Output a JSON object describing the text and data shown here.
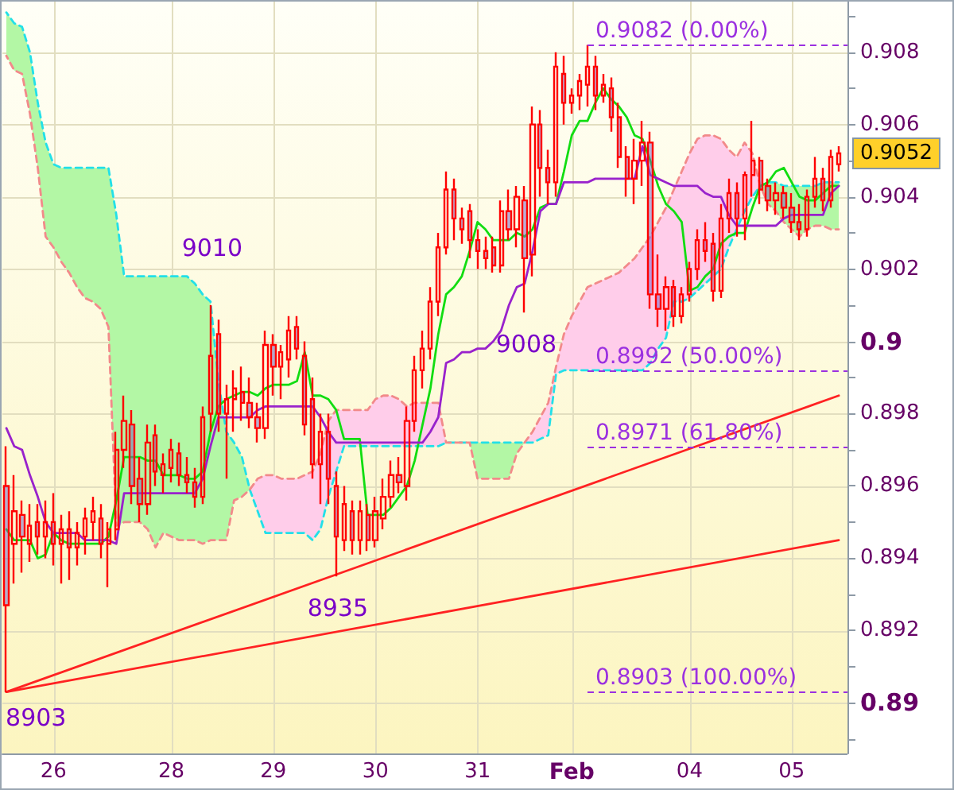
{
  "chart_data": {
    "type": "candlestick",
    "categories": [
      null,
      null,
      null,
      null,
      null,
      null,
      "26",
      null,
      null,
      null,
      null,
      null,
      null,
      null,
      null,
      null,
      null,
      null,
      null,
      null,
      null,
      "28",
      null,
      null,
      null,
      null,
      null,
      null,
      null,
      null,
      null,
      null,
      null,
      null,
      "29",
      null,
      null,
      null,
      null,
      null,
      null,
      null,
      null,
      null,
      null,
      null,
      null,
      "30",
      null,
      null,
      null,
      null,
      null,
      null,
      null,
      null,
      null,
      null,
      null,
      null,
      "31",
      null,
      null,
      null,
      null,
      null,
      null,
      null,
      null,
      null,
      null,
      null,
      "Feb",
      null,
      null,
      null,
      null,
      null,
      null,
      null,
      null,
      null,
      null,
      null,
      null,
      null,
      null,
      "04",
      null,
      null,
      null,
      null,
      null,
      null,
      null,
      null,
      null,
      null,
      null,
      null,
      "05",
      null,
      null,
      null,
      null,
      null,
      null
    ],
    "ylim": [
      0.8886,
      0.9094
    ],
    "yticks": [
      {
        "value": 0.889,
        "label": null
      },
      0.89,
      {
        "value": 0.891,
        "label": null
      },
      0.892,
      {
        "value": 0.893,
        "label": null
      },
      0.894,
      {
        "value": 0.895,
        "label": null
      },
      0.896,
      {
        "value": 0.897,
        "label": null
      },
      0.898,
      {
        "value": 0.899,
        "label": null
      },
      0.9,
      {
        "value": 0.901,
        "label": null
      },
      0.902,
      {
        "value": 0.903,
        "label": null
      },
      0.904,
      {
        "value": 0.905,
        "label": null
      },
      0.906,
      {
        "value": 0.907,
        "label": null
      },
      0.908,
      {
        "value": 0.909,
        "label": null
      }
    ],
    "grid": true,
    "series": [
      {
        "type": "area",
        "color": "#b3f7a5",
        "values": [
          null,
          null,
          null,
          null,
          null,
          null,
          null,
          null,
          null,
          null,
          null,
          null,
          null,
          null,
          null,
          null,
          null,
          null,
          null,
          null,
          null,
          null,
          null,
          null,
          null,
          null,
          null,
          null,
          null,
          null,
          null,
          null,
          null,
          null,
          null,
          null,
          null,
          null,
          null,
          null,
          null,
          null,
          null,
          null,
          null,
          null,
          null,
          null,
          null,
          null,
          null,
          null,
          null,
          null,
          null,
          null,
          null,
          null,
          null,
          null,
          null,
          null,
          null,
          null,
          null,
          null,
          null,
          null,
          null,
          null,
          null,
          null,
          null,
          null,
          null,
          null,
          null,
          null,
          null,
          null,
          null,
          null,
          null,
          null,
          null,
          null,
          null,
          null,
          null,
          null,
          null,
          null,
          null,
          null,
          null,
          null,
          null,
          null,
          null,
          null,
          null,
          null,
          null,
          null,
          null,
          null,
          null
        ],
        "lower": [
          0.9079,
          0.9075,
          0.9074,
          0.9063,
          0.9048,
          0.9029,
          0.9026,
          0.9022,
          0.9019,
          0.9015,
          0.9012,
          0.9011,
          0.9009,
          0.9004,
          0.8949,
          0.895,
          0.895,
          0.895,
          0.8948,
          0.8943,
          0.8947,
          0.8946,
          0.8945,
          0.8945,
          0.8945,
          0.8944,
          0.8945,
          0.8945,
          0.8945,
          0.8956,
          0.8957,
          0.8959,
          null,
          null,
          null,
          null,
          null,
          null,
          null,
          null,
          null,
          null,
          null,
          null,
          null,
          null,
          null,
          null,
          null,
          null,
          null,
          null,
          null,
          null,
          null,
          null,
          null,
          null,
          null,
          0.8972,
          0.8962,
          0.8962,
          0.8962,
          0.8962,
          0.8962,
          0.8969,
          0.8972,
          null,
          null,
          null,
          null,
          null,
          null,
          null,
          null,
          null,
          null,
          null,
          null,
          null,
          null,
          null,
          null,
          null,
          null,
          null,
          null,
          null,
          null,
          null,
          null,
          null,
          null,
          null,
          null,
          null,
          0.9043,
          0.9038,
          0.9036,
          0.9033,
          0.9031,
          0.9029,
          0.9031,
          0.9032,
          0.9032,
          0.9031,
          0.9031
        ],
        "upper": [
          0.9091,
          0.9088,
          0.9087,
          0.908,
          0.9066,
          0.9055,
          0.9049,
          0.9048,
          0.9048,
          0.9048,
          0.9048,
          0.9048,
          0.9048,
          0.9048,
          0.9035,
          0.9018,
          0.9018,
          0.9018,
          0.9018,
          0.9018,
          0.9018,
          0.9018,
          0.9018,
          0.9018,
          0.9016,
          0.9013,
          0.9011,
          0.8989,
          0.8975,
          0.8972,
          0.8968,
          0.8959,
          null,
          null,
          null,
          null,
          null,
          null,
          null,
          null,
          null,
          null,
          null,
          null,
          null,
          null,
          null,
          null,
          null,
          null,
          null,
          null,
          null,
          null,
          null,
          null,
          null,
          null,
          null,
          0.8972,
          0.8972,
          0.8972,
          0.8972,
          0.8972,
          0.8972,
          0.8972,
          0.8972,
          null,
          null,
          null,
          null,
          null,
          null,
          null,
          null,
          null,
          null,
          null,
          null,
          null,
          null,
          null,
          null,
          null,
          null,
          null,
          null,
          null,
          null,
          null,
          null,
          null,
          null,
          null,
          null,
          null,
          0.9043,
          0.9044,
          0.9044,
          0.9043,
          0.9043,
          0.9043,
          0.9043,
          0.9043,
          0.9044,
          0.9044,
          0.9044
        ]
      },
      {
        "type": "area",
        "color": "#ffcdea",
        "values": [
          null,
          null,
          null,
          null,
          null,
          null,
          null,
          null,
          null,
          null,
          null,
          null,
          null,
          null,
          null,
          null,
          null,
          null,
          null,
          null,
          null,
          null,
          null,
          null,
          null,
          null,
          null,
          null,
          null,
          null,
          null,
          null,
          null,
          null,
          null,
          null,
          null,
          null,
          null,
          null,
          null,
          null,
          null,
          null,
          null,
          null,
          null,
          null,
          null,
          null,
          null,
          null,
          null,
          null,
          null,
          null,
          null,
          null,
          null,
          null,
          null,
          null,
          null,
          null,
          null,
          null,
          null,
          null,
          null,
          null,
          null,
          null,
          null,
          null,
          null,
          null,
          null,
          null,
          null,
          null,
          null,
          null,
          null,
          null,
          null,
          null,
          null,
          null,
          null,
          null,
          null,
          null,
          null,
          null,
          null,
          null,
          null,
          null,
          null,
          null,
          null,
          null,
          null,
          null,
          null,
          null,
          null
        ],
        "lower": [
          null,
          null,
          null,
          null,
          null,
          null,
          null,
          null,
          null,
          null,
          null,
          null,
          null,
          null,
          null,
          null,
          null,
          null,
          null,
          null,
          null,
          null,
          null,
          null,
          null,
          null,
          null,
          null,
          null,
          null,
          null,
          0.8959,
          0.8953,
          0.8947,
          0.8947,
          0.8947,
          0.8947,
          0.8947,
          0.8947,
          0.8945,
          0.8948,
          0.8957,
          0.8964,
          0.8971,
          0.8971,
          0.8971,
          0.8971,
          0.8971,
          0.8971,
          0.8971,
          0.8971,
          0.8971,
          0.8971,
          0.8971,
          0.8971,
          0.8971,
          0.8972,
          null,
          null,
          null,
          null,
          null,
          null,
          null,
          null,
          null,
          0.8972,
          0.8972,
          0.8973,
          0.8974,
          0.8991,
          0.8992,
          0.8992,
          0.8992,
          0.8992,
          0.8992,
          0.8992,
          0.8992,
          0.8992,
          0.8992,
          0.8992,
          0.8992,
          0.8994,
          0.8998,
          0.9001,
          0.9011,
          0.9011,
          0.9012,
          0.9014,
          0.9016,
          0.9018,
          0.902,
          0.9026,
          0.9031,
          0.9036,
          0.904,
          0.9043,
          null,
          null,
          null,
          null,
          null,
          null,
          null,
          null,
          null,
          null
        ],
        "upper": [
          null,
          null,
          null,
          null,
          null,
          null,
          null,
          null,
          null,
          null,
          null,
          null,
          null,
          null,
          null,
          null,
          null,
          null,
          null,
          null,
          null,
          null,
          null,
          null,
          null,
          null,
          null,
          null,
          null,
          null,
          null,
          0.8959,
          0.8962,
          0.8963,
          0.8963,
          0.8962,
          0.8962,
          0.8962,
          0.8963,
          0.8964,
          0.8969,
          0.8978,
          0.8981,
          0.8981,
          0.8981,
          0.8981,
          0.8981,
          0.8984,
          0.8985,
          0.8985,
          0.8984,
          0.8982,
          0.8983,
          0.8983,
          0.8983,
          0.8983,
          0.8972,
          null,
          null,
          null,
          null,
          null,
          null,
          null,
          null,
          null,
          0.8972,
          0.8975,
          0.8979,
          0.8983,
          0.8993,
          0.9002,
          0.9007,
          0.9011,
          0.9015,
          0.9016,
          0.9017,
          0.9018,
          0.9019,
          0.9021,
          0.9023,
          0.9026,
          0.9029,
          0.9033,
          0.9037,
          0.9042,
          0.9047,
          0.9052,
          0.9056,
          0.9057,
          0.9057,
          0.9056,
          0.9053,
          0.9051,
          0.9055,
          0.9052,
          0.9043,
          null,
          null,
          null,
          null,
          null,
          null,
          null,
          null,
          null,
          null
        ]
      },
      {
        "type": "line",
        "color": "#22e0e8",
        "line_style": "dashed",
        "values": [
          0.9091,
          0.9088,
          0.9087,
          0.908,
          0.9066,
          0.9055,
          0.9049,
          0.9048,
          0.9048,
          0.9048,
          0.9048,
          0.9048,
          0.9048,
          0.9048,
          0.9035,
          0.9018,
          0.9018,
          0.9018,
          0.9018,
          0.9018,
          0.9018,
          0.9018,
          0.9018,
          0.9018,
          0.9016,
          0.9013,
          0.9011,
          0.8989,
          0.8975,
          0.8972,
          0.8968,
          0.8959,
          0.8953,
          0.8947,
          0.8947,
          0.8947,
          0.8947,
          0.8947,
          0.8947,
          0.8945,
          0.8948,
          0.8957,
          0.8964,
          0.8971,
          0.8971,
          0.8971,
          0.8971,
          0.8971,
          0.8971,
          0.8971,
          0.8971,
          0.8971,
          0.8971,
          0.8971,
          0.8971,
          0.8971,
          0.8972,
          0.8972,
          0.8972,
          0.8972,
          0.8972,
          0.8972,
          0.8972,
          0.8972,
          0.8972,
          0.8972,
          0.8972,
          0.8972,
          0.8973,
          0.8974,
          0.8991,
          0.8992,
          0.8992,
          0.8992,
          0.8992,
          0.8992,
          0.8992,
          0.8992,
          0.8992,
          0.8992,
          0.8992,
          0.8992,
          0.8994,
          0.8998,
          0.9001,
          0.9011,
          0.9011,
          0.9012,
          0.9014,
          0.9016,
          0.9018,
          0.902,
          0.9026,
          0.9031,
          0.9036,
          0.904,
          0.9043,
          0.9044,
          0.9044,
          0.9043,
          0.9043,
          0.9043,
          0.9043,
          0.9043,
          0.9044,
          0.9044,
          0.9044
        ]
      },
      {
        "type": "line",
        "color": "#f28a8a",
        "line_style": "dashed",
        "values": [
          0.9079,
          0.9075,
          0.9074,
          0.9063,
          0.9048,
          0.9029,
          0.9026,
          0.9022,
          0.9019,
          0.9015,
          0.9012,
          0.9011,
          0.9009,
          0.9004,
          0.8949,
          0.895,
          0.895,
          0.895,
          0.8948,
          0.8943,
          0.8947,
          0.8946,
          0.8945,
          0.8945,
          0.8945,
          0.8944,
          0.8945,
          0.8945,
          0.8945,
          0.8956,
          0.8957,
          0.8959,
          0.8962,
          0.8963,
          0.8963,
          0.8962,
          0.8962,
          0.8962,
          0.8963,
          0.8964,
          0.8969,
          0.8978,
          0.8981,
          0.8981,
          0.8981,
          0.8981,
          0.8981,
          0.8984,
          0.8985,
          0.8985,
          0.8984,
          0.8982,
          0.8983,
          0.8983,
          0.8983,
          0.8983,
          0.8972,
          0.8972,
          0.8972,
          0.8972,
          0.8962,
          0.8962,
          0.8962,
          0.8962,
          0.8962,
          0.8969,
          0.8972,
          0.8975,
          0.8979,
          0.8983,
          0.8993,
          0.9002,
          0.9007,
          0.9011,
          0.9015,
          0.9016,
          0.9017,
          0.9018,
          0.9019,
          0.9021,
          0.9023,
          0.9026,
          0.9029,
          0.9033,
          0.9037,
          0.9042,
          0.9047,
          0.9052,
          0.9056,
          0.9057,
          0.9057,
          0.9056,
          0.9053,
          0.9051,
          0.9055,
          0.9052,
          0.9043,
          0.9038,
          0.9036,
          0.9033,
          0.9031,
          0.9029,
          0.9031,
          0.9032,
          0.9032,
          0.9031,
          0.9031
        ]
      },
      {
        "type": "line",
        "color": "#11dd11",
        "values": [
          0.8948,
          0.8945,
          0.8945,
          0.8945,
          0.894,
          0.8941,
          0.8947,
          0.8945,
          0.8944,
          0.8944,
          0.8944,
          0.8944,
          0.8944,
          0.8946,
          0.8956,
          0.8968,
          0.8968,
          0.8968,
          0.8967,
          0.8967,
          0.8963,
          0.8963,
          0.8963,
          0.8962,
          0.8962,
          0.8964,
          0.8975,
          0.8982,
          0.8984,
          0.8985,
          0.8986,
          0.8986,
          0.8985,
          0.8987,
          0.8988,
          0.8988,
          0.8988,
          0.8989,
          0.8997,
          0.8985,
          0.8985,
          0.8984,
          0.8981,
          0.8973,
          0.8973,
          0.8973,
          0.8952,
          0.8952,
          0.8952,
          0.8954,
          0.8957,
          0.896,
          0.8967,
          0.8977,
          0.8987,
          0.9002,
          0.9013,
          0.9015,
          0.9018,
          0.9025,
          0.9033,
          0.9031,
          0.9028,
          0.9028,
          0.9028,
          0.903,
          0.9029,
          0.9031,
          0.9037,
          0.9038,
          0.9038,
          0.9047,
          0.9057,
          0.9061,
          0.9061,
          0.9066,
          0.907,
          0.9067,
          0.9065,
          0.9062,
          0.9057,
          0.9056,
          0.905,
          0.9043,
          0.9038,
          0.9036,
          0.9033,
          0.9014,
          0.9015,
          0.9018,
          0.902,
          0.9027,
          0.9029,
          0.903,
          0.903,
          0.9037,
          0.9043,
          0.9044,
          0.9047,
          0.9048,
          0.9044,
          0.904,
          0.9039,
          0.9039,
          0.9041,
          0.9043,
          0.9043
        ]
      },
      {
        "type": "line",
        "color": "#9922cc",
        "values": [
          0.8976,
          0.8971,
          0.897,
          0.8963,
          0.8957,
          0.895,
          0.8947,
          0.8947,
          0.8947,
          0.8947,
          0.8945,
          0.8945,
          0.8945,
          0.8945,
          0.8944,
          0.8958,
          0.8958,
          0.8958,
          0.8958,
          0.8958,
          0.8958,
          0.8958,
          0.8958,
          0.8958,
          0.8958,
          0.8962,
          0.8971,
          0.8979,
          0.8979,
          0.8979,
          0.8979,
          0.8979,
          0.8981,
          0.8982,
          0.8982,
          0.8982,
          0.8982,
          0.8982,
          0.8982,
          0.8982,
          0.8979,
          0.8975,
          0.8972,
          0.8972,
          0.8972,
          0.8972,
          0.8972,
          0.8972,
          0.8972,
          0.8972,
          0.8972,
          0.8972,
          0.8972,
          0.8972,
          0.8975,
          0.8979,
          0.8994,
          0.8995,
          0.8997,
          0.8997,
          0.8998,
          0.8998,
          0.9,
          0.9003,
          0.901,
          0.9015,
          0.9016,
          0.9025,
          0.9036,
          0.9038,
          0.9038,
          0.9044,
          0.9044,
          0.9044,
          0.9044,
          0.9045,
          0.9045,
          0.9045,
          0.9045,
          0.9045,
          0.9045,
          0.9054,
          0.9046,
          0.9045,
          0.9044,
          0.9043,
          0.9043,
          0.9043,
          0.9043,
          0.9041,
          0.904,
          0.904,
          0.9035,
          0.9032,
          0.9032,
          0.9032,
          0.9032,
          0.9032,
          0.9032,
          0.9034,
          0.9035,
          0.9035,
          0.9035,
          0.9035,
          0.9035,
          0.9041,
          0.9043
        ]
      },
      {
        "type": "line",
        "color": "#ff2222",
        "values": [
          0.8903,
          null,
          null,
          null,
          null,
          null,
          null,
          null,
          null,
          null,
          null,
          null,
          null,
          null,
          null,
          null,
          null,
          null,
          null,
          null,
          null,
          null,
          null,
          null,
          null,
          null,
          null,
          null,
          null,
          null,
          null,
          null,
          null,
          null,
          null,
          null,
          null,
          null,
          null,
          null,
          null,
          null,
          null,
          null,
          null,
          null,
          null,
          null,
          null,
          null,
          null,
          null,
          null,
          null,
          null,
          null,
          null,
          null,
          null,
          null,
          null,
          null,
          null,
          null,
          null,
          null,
          null,
          null,
          null,
          null,
          null,
          null,
          null,
          null,
          null,
          null,
          null,
          null,
          null,
          null,
          null,
          null,
          null,
          null,
          null,
          null,
          null,
          null,
          null,
          null,
          null,
          null,
          null,
          null,
          null,
          null,
          null,
          null,
          null,
          null,
          null,
          null,
          null,
          null,
          null,
          null,
          0.8985
        ]
      },
      {
        "type": "line",
        "color": "#ff2222",
        "values": [
          0.8903,
          null,
          null,
          null,
          null,
          null,
          null,
          null,
          null,
          null,
          null,
          null,
          null,
          null,
          null,
          null,
          null,
          null,
          null,
          null,
          null,
          null,
          null,
          null,
          null,
          null,
          null,
          null,
          null,
          null,
          null,
          null,
          null,
          null,
          null,
          null,
          null,
          null,
          null,
          null,
          null,
          null,
          null,
          null,
          null,
          null,
          null,
          null,
          null,
          null,
          null,
          null,
          null,
          null,
          null,
          null,
          null,
          null,
          null,
          null,
          null,
          null,
          null,
          null,
          null,
          null,
          null,
          null,
          null,
          null,
          null,
          null,
          null,
          null,
          null,
          null,
          null,
          null,
          null,
          null,
          null,
          null,
          null,
          null,
          null,
          null,
          null,
          null,
          null,
          null,
          null,
          null,
          null,
          null,
          null,
          null,
          null,
          null,
          null,
          null,
          null,
          null,
          null,
          null,
          null,
          null,
          0.8945
        ]
      },
      {
        "color": "#ff0000",
        "ohlc": [
          [
            0.896,
            0.8971,
            0.8903,
            0.8927
          ],
          [
            0.8944,
            0.8963,
            0.8933,
            0.8953
          ],
          [
            0.8952,
            0.8956,
            0.8936,
            0.8946
          ],
          [
            0.8944,
            0.8955,
            0.8939,
            0.8949
          ],
          [
            0.895,
            0.8955,
            0.8941,
            0.8946
          ],
          [
            0.8946,
            0.8956,
            0.894,
            0.895
          ],
          [
            0.895,
            0.8958,
            0.8938,
            0.8944
          ],
          [
            0.8944,
            0.8952,
            0.8933,
            0.8948
          ],
          [
            0.8948,
            0.8953,
            0.8934,
            0.8943
          ],
          [
            0.8943,
            0.895,
            0.8938,
            0.8947
          ],
          [
            0.8946,
            0.8954,
            0.8941,
            0.8951
          ],
          [
            0.895,
            0.8957,
            0.8945,
            0.8953
          ],
          [
            0.8951,
            0.8955,
            0.894,
            0.8944
          ],
          [
            0.8944,
            0.895,
            0.8932,
            0.8948
          ],
          [
            0.8948,
            0.8975,
            0.8945,
            0.897
          ],
          [
            0.897,
            0.8985,
            0.8965,
            0.8978
          ],
          [
            0.8977,
            0.8981,
            0.8955,
            0.896
          ],
          [
            0.8962,
            0.8968,
            0.895,
            0.8955
          ],
          [
            0.8955,
            0.8977,
            0.8952,
            0.8972
          ],
          [
            0.8974,
            0.8977,
            0.896,
            0.8964
          ],
          [
            0.8963,
            0.8969,
            0.8958,
            0.8966
          ],
          [
            0.8965,
            0.8973,
            0.8961,
            0.897
          ],
          [
            0.8969,
            0.8972,
            0.896,
            0.8963
          ],
          [
            0.8963,
            0.8968,
            0.8958,
            0.8961
          ],
          [
            0.8961,
            0.8965,
            0.8954,
            0.8957
          ],
          [
            0.8957,
            0.8982,
            0.8955,
            0.8979
          ],
          [
            0.898,
            0.901,
            0.8975,
            0.8996
          ],
          [
            0.9002,
            0.9006,
            0.8975,
            0.898
          ],
          [
            0.898,
            0.8988,
            0.8962,
            0.8984
          ],
          [
            0.8984,
            0.8992,
            0.8975,
            0.8987
          ],
          [
            0.8986,
            0.8993,
            0.8978,
            0.8983
          ],
          [
            0.8983,
            0.899,
            0.8976,
            0.8979
          ],
          [
            0.8979,
            0.8983,
            0.8972,
            0.8976
          ],
          [
            0.8976,
            0.9003,
            0.8973,
            0.8999
          ],
          [
            0.8999,
            0.9002,
            0.8985,
            0.8993
          ],
          [
            0.8993,
            0.8999,
            0.8984,
            0.8997
          ],
          [
            0.8995,
            0.9007,
            0.899,
            0.9003
          ],
          [
            0.9004,
            0.9007,
            0.8995,
            0.8998
          ],
          [
            0.8996,
            0.9,
            0.8974,
            0.8977
          ],
          [
            0.8984,
            0.899,
            0.8962,
            0.8966
          ],
          [
            0.8966,
            0.898,
            0.8955,
            0.8975
          ],
          [
            0.8975,
            0.898,
            0.8955,
            0.8962
          ],
          [
            0.896,
            0.8964,
            0.8935,
            0.8946
          ],
          [
            0.8945,
            0.896,
            0.8942,
            0.8955
          ],
          [
            0.8953,
            0.8956,
            0.8941,
            0.8945
          ],
          [
            0.8945,
            0.8956,
            0.8941,
            0.8953
          ],
          [
            0.8952,
            0.8955,
            0.8942,
            0.8945
          ],
          [
            0.8945,
            0.8957,
            0.8943,
            0.8953
          ],
          [
            0.8951,
            0.8962,
            0.8948,
            0.8957
          ],
          [
            0.8957,
            0.8967,
            0.8954,
            0.8963
          ],
          [
            0.8963,
            0.8968,
            0.8958,
            0.8961
          ],
          [
            0.896,
            0.8982,
            0.8956,
            0.8978
          ],
          [
            0.8978,
            0.8996,
            0.8975,
            0.8992
          ],
          [
            0.8992,
            0.9003,
            0.8987,
            0.8998
          ],
          [
            0.8998,
            0.9015,
            0.8995,
            0.9011
          ],
          [
            0.9011,
            0.903,
            0.9007,
            0.9026
          ],
          [
            0.9026,
            0.9047,
            0.9024,
            0.9042
          ],
          [
            0.9042,
            0.9045,
            0.9028,
            0.9034
          ],
          [
            0.9034,
            0.9037,
            0.9027,
            0.9031
          ],
          [
            0.9036,
            0.9038,
            0.9023,
            0.9028
          ],
          [
            0.9028,
            0.9031,
            0.902,
            0.9025
          ],
          [
            0.9025,
            0.9029,
            0.902,
            0.9023
          ],
          [
            0.9026,
            0.9029,
            0.9019,
            0.9021
          ],
          [
            0.9021,
            0.9039,
            0.9019,
            0.9036
          ],
          [
            0.9036,
            0.9042,
            0.9028,
            0.9031
          ],
          [
            0.9031,
            0.9043,
            0.9026,
            0.904
          ],
          [
            0.9039,
            0.9043,
            0.9008,
            0.9023
          ],
          [
            0.9024,
            0.9065,
            0.9018,
            0.906
          ],
          [
            0.906,
            0.9064,
            0.904,
            0.9048
          ],
          [
            0.9048,
            0.9053,
            0.9038,
            0.9044
          ],
          [
            0.9044,
            0.908,
            0.904,
            0.9076
          ],
          [
            0.9074,
            0.9079,
            0.906,
            0.9066
          ],
          [
            0.9066,
            0.907,
            0.9063,
            0.9068
          ],
          [
            0.9068,
            0.9074,
            0.9064,
            0.9072
          ],
          [
            0.9071,
            0.9082,
            0.9065,
            0.9076
          ],
          [
            0.9076,
            0.9079,
            0.9064,
            0.9068
          ],
          [
            0.9068,
            0.9074,
            0.9066,
            0.9071
          ],
          [
            0.907,
            0.9073,
            0.9058,
            0.9062
          ],
          [
            0.9062,
            0.9066,
            0.9048,
            0.9051
          ],
          [
            0.9051,
            0.9054,
            0.904,
            0.9045
          ],
          [
            0.9045,
            0.9056,
            0.9038,
            0.905
          ],
          [
            0.905,
            0.9061,
            0.9043,
            0.9055
          ],
          [
            0.9055,
            0.9058,
            0.9009,
            0.9013
          ],
          [
            0.9013,
            0.9024,
            0.9004,
            0.9009
          ],
          [
            0.9009,
            0.9018,
            0.9003,
            0.9015
          ],
          [
            0.9015,
            0.9017,
            0.9004,
            0.9007
          ],
          [
            0.9007,
            0.9015,
            0.9005,
            0.9013
          ],
          [
            0.9013,
            0.9022,
            0.9011,
            0.902
          ],
          [
            0.902,
            0.9031,
            0.9017,
            0.9028
          ],
          [
            0.9028,
            0.9033,
            0.9022,
            0.9025
          ],
          [
            0.9027,
            0.903,
            0.9011,
            0.9014
          ],
          [
            0.9014,
            0.9038,
            0.9012,
            0.9034
          ],
          [
            0.9034,
            0.9045,
            0.903,
            0.9041
          ],
          [
            0.9041,
            0.9044,
            0.9029,
            0.9034
          ],
          [
            0.9034,
            0.9047,
            0.9028,
            0.9046
          ],
          [
            0.9046,
            0.9061,
            0.904,
            0.905
          ],
          [
            0.905,
            0.9051,
            0.9038,
            0.9042
          ],
          [
            0.9043,
            0.9045,
            0.9036,
            0.9039
          ],
          [
            0.9039,
            0.9044,
            0.9035,
            0.9041
          ],
          [
            0.9041,
            0.9043,
            0.9034,
            0.9037
          ],
          [
            0.9037,
            0.9041,
            0.903,
            0.9033
          ],
          [
            0.9033,
            0.9038,
            0.9028,
            0.9031
          ],
          [
            0.9031,
            0.9042,
            0.9029,
            0.904
          ],
          [
            0.904,
            0.9051,
            0.9037,
            0.9045
          ],
          [
            0.9045,
            0.9048,
            0.9036,
            0.9039
          ],
          [
            0.9039,
            0.9053,
            0.9037,
            0.9051
          ],
          [
            0.9049,
            0.9054,
            0.9047,
            0.9052
          ]
        ]
      }
    ],
    "ref_lines": [
      {
        "axis": "y",
        "value": 0.9082,
        "label": "0.9082 (0.00%)",
        "color": "#9b30e0",
        "line_style": "dashed"
      },
      {
        "axis": "y",
        "value": 0.8992,
        "label": "0.8992 (50.00%)",
        "color": "#9b30e0",
        "line_style": "dashed"
      },
      {
        "axis": "y",
        "value": 0.8971,
        "label": "0.8971 (61.80%)",
        "color": "#9b30e0",
        "line_style": "dashed"
      },
      {
        "axis": "y",
        "value": 0.8903,
        "label": "0.8903 (100.00%)",
        "color": "#9b30e0",
        "line_style": "dashed"
      }
    ],
    "annotations": [
      {
        "text": "9010",
        "y": 0.901
      },
      {
        "text": "9008",
        "y": 0.9008
      },
      {
        "text": "8935",
        "y": 0.8935
      },
      "8903",
      "0.9052"
    ]
  }
}
